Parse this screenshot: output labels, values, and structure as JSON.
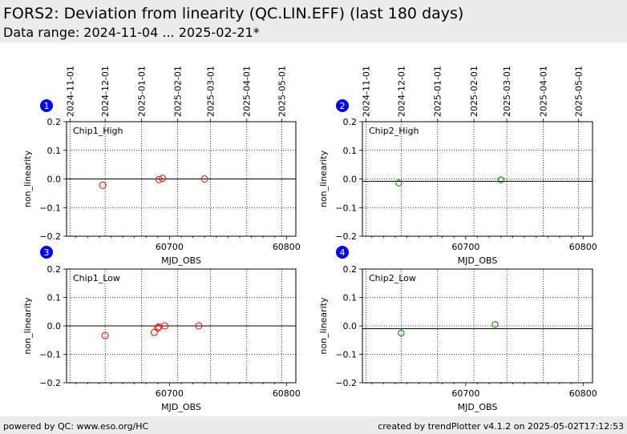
{
  "header": {
    "title": "FORS2: Deviation from linearity (QC.LIN.EFF) (last 180 days)",
    "subtitle": "Data range: 2024-11-04 ... 2025-02-21*"
  },
  "footer": {
    "left": "powered by QC: www.eso.org/HC",
    "right": "created by trendPlotter v4.1.2 on 2025-05-02T17:12:53"
  },
  "colors": {
    "series_chip1": "#ff0000",
    "series_chip2": "#008000",
    "badge": "#0000ff",
    "header_bg": "#ececec"
  },
  "chart_data": [
    {
      "type": "scatter",
      "badge": "1",
      "label": "Chip1_High",
      "xlabel": "MJD_OBS",
      "ylabel": "non_linearity",
      "xlim": [
        60612,
        60808
      ],
      "ylim": [
        -0.2,
        0.2
      ],
      "x_ticks": [
        60700,
        60800
      ],
      "y_ticks": [
        -0.2,
        -0.1,
        0.0,
        0.1,
        0.2
      ],
      "y_tick_labels": [
        "−0.2",
        "−0.1",
        "0.0",
        "0.1",
        "0.2"
      ],
      "date_ticks": [
        "2024-11-01",
        "2024-12-01",
        "2025-01-01",
        "2025-02-01",
        "2025-03-01",
        "2025-04-01",
        "2025-05-01"
      ],
      "reference_line": 0.0,
      "marker": "o",
      "color": "#ff0000",
      "grid": "dotted vertical at month starts, dotted horizontal",
      "points": [
        {
          "x": 60643,
          "y": -0.022
        },
        {
          "x": 60691,
          "y": -0.002
        },
        {
          "x": 60694,
          "y": 0.002
        },
        {
          "x": 60730,
          "y": 0.0
        }
      ]
    },
    {
      "type": "scatter",
      "badge": "2",
      "label": "Chip2_High",
      "xlabel": "MJD_OBS",
      "ylabel": "non_linearity",
      "xlim": [
        60612,
        60808
      ],
      "ylim": [
        -0.2,
        0.2
      ],
      "x_ticks": [
        60700,
        60800
      ],
      "y_ticks": [
        -0.2,
        -0.1,
        0.0,
        0.1,
        0.2
      ],
      "y_tick_labels": [
        "−0.2",
        "−0.1",
        "0.0",
        "0.1",
        "0.2"
      ],
      "date_ticks": [
        "2024-11-01",
        "2024-12-01",
        "2025-01-01",
        "2025-02-01",
        "2025-03-01",
        "2025-04-01",
        "2025-05-01"
      ],
      "reference_line": -0.008,
      "marker": "hexagon",
      "color": "#008000",
      "grid": "dotted vertical at month starts, dotted horizontal",
      "points": [
        {
          "x": 60643,
          "y": -0.014
        },
        {
          "x": 60730,
          "y": -0.003
        }
      ]
    },
    {
      "type": "scatter",
      "badge": "3",
      "label": "Chip1_Low",
      "xlabel": "MJD_OBS",
      "ylabel": "non_linearity",
      "xlim": [
        60612,
        60808
      ],
      "ylim": [
        -0.2,
        0.2
      ],
      "x_ticks": [
        60700,
        60800
      ],
      "y_ticks": [
        -0.2,
        -0.1,
        0.0,
        0.1,
        0.2
      ],
      "y_tick_labels": [
        "−0.2",
        "−0.1",
        "0.0",
        "0.1",
        "0.2"
      ],
      "date_ticks": [
        "2024-11-01",
        "2024-12-01",
        "2025-01-01",
        "2025-02-01",
        "2025-03-01",
        "2025-04-01",
        "2025-05-01"
      ],
      "reference_line": 0.0,
      "marker": "o",
      "color": "#ff0000",
      "grid": "dotted vertical at month starts, dotted horizontal",
      "points": [
        {
          "x": 60645,
          "y": -0.034
        },
        {
          "x": 60687,
          "y": -0.023
        },
        {
          "x": 60690,
          "y": -0.007
        },
        {
          "x": 60691,
          "y": -0.003
        },
        {
          "x": 60696,
          "y": 0.0
        },
        {
          "x": 60725,
          "y": 0.0
        }
      ]
    },
    {
      "type": "scatter",
      "badge": "4",
      "label": "Chip2_Low",
      "xlabel": "MJD_OBS",
      "ylabel": "non_linearity",
      "xlim": [
        60612,
        60808
      ],
      "ylim": [
        -0.2,
        0.2
      ],
      "x_ticks": [
        60700,
        60800
      ],
      "y_ticks": [
        -0.2,
        -0.1,
        0.0,
        0.1,
        0.2
      ],
      "y_tick_labels": [
        "−0.2",
        "−0.1",
        "0.0",
        "0.1",
        "0.2"
      ],
      "date_ticks": [
        "2024-11-01",
        "2024-12-01",
        "2025-01-01",
        "2025-02-01",
        "2025-03-01",
        "2025-04-01",
        "2025-05-01"
      ],
      "reference_line": -0.01,
      "marker": "hexagon",
      "color": "#008000",
      "grid": "dotted vertical at month starts, dotted horizontal",
      "points": [
        {
          "x": 60645,
          "y": -0.025
        },
        {
          "x": 60725,
          "y": 0.005
        }
      ]
    }
  ]
}
